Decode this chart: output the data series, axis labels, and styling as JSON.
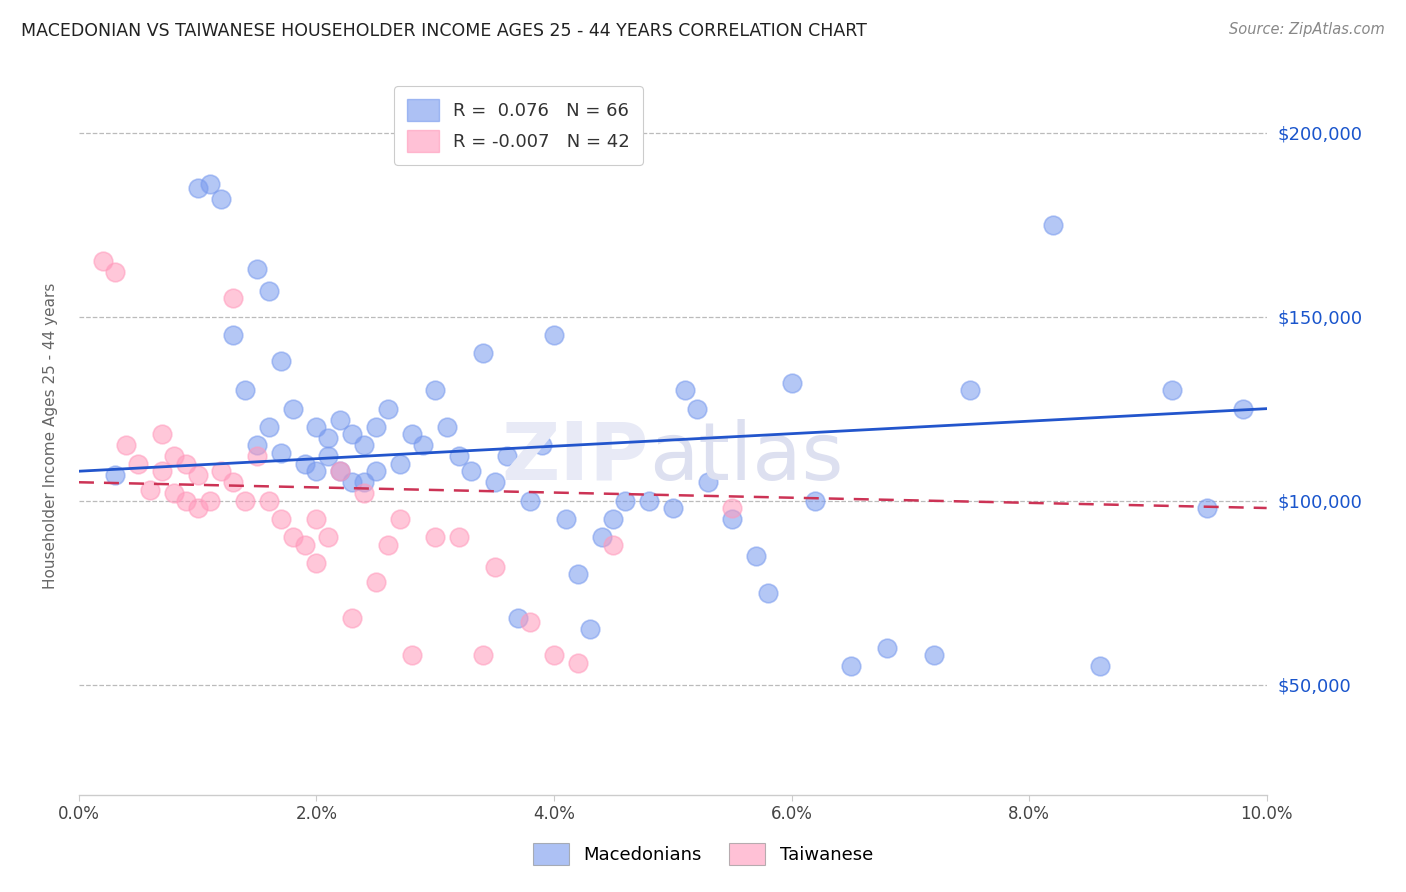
{
  "title": "MACEDONIAN VS TAIWANESE HOUSEHOLDER INCOME AGES 25 - 44 YEARS CORRELATION CHART",
  "source": "Source: ZipAtlas.com",
  "ylabel": "Householder Income Ages 25 - 44 years",
  "xlabel_ticks": [
    "0.0%",
    "2.0%",
    "4.0%",
    "6.0%",
    "8.0%",
    "10.0%"
  ],
  "xlabel_vals": [
    0.0,
    0.02,
    0.04,
    0.06,
    0.08,
    0.1
  ],
  "ylabel_right_labels": [
    "$50,000",
    "$100,000",
    "$150,000",
    "$200,000"
  ],
  "ylabel_right_vals": [
    50000,
    100000,
    150000,
    200000
  ],
  "xmin": 0.0,
  "xmax": 0.1,
  "ymin": 20000,
  "ymax": 215000,
  "macedonian_R": 0.076,
  "macedonian_N": 66,
  "taiwanese_R": -0.007,
  "taiwanese_N": 42,
  "macedonian_color": "#7799ee",
  "taiwanese_color": "#ff99bb",
  "trend_macedonian_color": "#2255cc",
  "trend_taiwanese_color": "#cc3355",
  "legend_macedonians": "Macedonians",
  "legend_taiwanese": "Taiwanese",
  "macedonian_x": [
    0.003,
    0.01,
    0.011,
    0.012,
    0.013,
    0.014,
    0.015,
    0.015,
    0.016,
    0.016,
    0.017,
    0.017,
    0.018,
    0.019,
    0.02,
    0.02,
    0.021,
    0.021,
    0.022,
    0.022,
    0.023,
    0.023,
    0.024,
    0.024,
    0.025,
    0.025,
    0.026,
    0.027,
    0.028,
    0.029,
    0.03,
    0.031,
    0.032,
    0.033,
    0.034,
    0.035,
    0.036,
    0.037,
    0.038,
    0.039,
    0.04,
    0.041,
    0.042,
    0.043,
    0.044,
    0.045,
    0.046,
    0.048,
    0.05,
    0.051,
    0.052,
    0.053,
    0.055,
    0.057,
    0.058,
    0.06,
    0.062,
    0.065,
    0.068,
    0.072,
    0.075,
    0.082,
    0.086,
    0.092,
    0.095,
    0.098
  ],
  "macedonian_y": [
    107000,
    185000,
    186000,
    182000,
    145000,
    130000,
    163000,
    115000,
    157000,
    120000,
    138000,
    113000,
    125000,
    110000,
    120000,
    108000,
    117000,
    112000,
    122000,
    108000,
    118000,
    105000,
    115000,
    105000,
    120000,
    108000,
    125000,
    110000,
    118000,
    115000,
    130000,
    120000,
    112000,
    108000,
    140000,
    105000,
    112000,
    68000,
    100000,
    115000,
    145000,
    95000,
    80000,
    65000,
    90000,
    95000,
    100000,
    100000,
    98000,
    130000,
    125000,
    105000,
    95000,
    85000,
    75000,
    132000,
    100000,
    55000,
    60000,
    58000,
    130000,
    175000,
    55000,
    130000,
    98000,
    125000
  ],
  "taiwanese_x": [
    0.002,
    0.003,
    0.004,
    0.005,
    0.006,
    0.007,
    0.007,
    0.008,
    0.008,
    0.009,
    0.009,
    0.01,
    0.01,
    0.011,
    0.012,
    0.013,
    0.013,
    0.014,
    0.015,
    0.016,
    0.017,
    0.018,
    0.019,
    0.02,
    0.02,
    0.021,
    0.022,
    0.023,
    0.024,
    0.025,
    0.026,
    0.027,
    0.028,
    0.03,
    0.032,
    0.034,
    0.035,
    0.038,
    0.04,
    0.042,
    0.045,
    0.055
  ],
  "taiwanese_y": [
    165000,
    162000,
    115000,
    110000,
    103000,
    118000,
    108000,
    112000,
    102000,
    110000,
    100000,
    107000,
    98000,
    100000,
    108000,
    155000,
    105000,
    100000,
    112000,
    100000,
    95000,
    90000,
    88000,
    95000,
    83000,
    90000,
    108000,
    68000,
    102000,
    78000,
    88000,
    95000,
    58000,
    90000,
    90000,
    58000,
    82000,
    67000,
    58000,
    56000,
    88000,
    98000
  ]
}
